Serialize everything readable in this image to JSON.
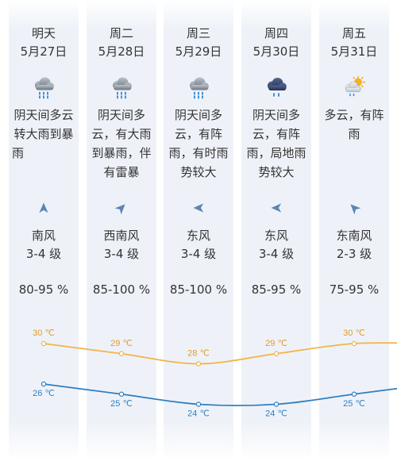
{
  "days": [
    {
      "day": "明天",
      "date": "5月27日",
      "icon": "heavy-rain-icon",
      "desc": "阴天间多云转大雨到暴雨",
      "arrow_icon": "arrow-north-icon",
      "wind": "南风",
      "level": "3-4 级",
      "humidity": "80-95 %"
    },
    {
      "day": "周二",
      "date": "5月28日",
      "icon": "heavy-rain-icon",
      "desc": "阴天间多云，有大雨到暴雨，伴有雷暴",
      "arrow_icon": "arrow-northeast-icon",
      "wind": "西南风",
      "level": "3-4 级",
      "humidity": "85-100 %"
    },
    {
      "day": "周三",
      "date": "5月29日",
      "icon": "heavy-rain-icon",
      "desc": "阴天间多云，有阵雨，有时雨势较大",
      "arrow_icon": "arrow-west-icon",
      "wind": "东风",
      "level": "3-4 级",
      "humidity": "85-100 %"
    },
    {
      "day": "周四",
      "date": "5月30日",
      "icon": "dark-cloud-shower-icon",
      "desc": "阴天间多云，有阵雨，局地雨势较大",
      "arrow_icon": "arrow-west-icon",
      "wind": "东风",
      "level": "3-4 级",
      "humidity": "85-95 %"
    },
    {
      "day": "周五",
      "date": "5月31日",
      "icon": "sun-cloud-shower-icon",
      "desc": "多云，有阵雨",
      "arrow_icon": "arrow-northwest-icon",
      "wind": "东南风",
      "level": "2-3 级",
      "humidity": "75-95 %"
    }
  ],
  "colors": {
    "strip": "#eef2f8",
    "text": "#333333",
    "wind_arrow": "#5b86b6"
  },
  "chart_data": {
    "type": "line",
    "grid": false,
    "series": [
      {
        "values": [
          30,
          29,
          28,
          29,
          30
        ],
        "labels": [
          "30 ℃",
          "29 ℃",
          "28 ℃",
          "29 ℃",
          "30 ℃"
        ],
        "color": "#f2b448",
        "label_color": "#e39a2a"
      },
      {
        "values": [
          26,
          25,
          24,
          24,
          25
        ],
        "labels": [
          "26 ℃",
          "25 ℃",
          "24 ℃",
          "24 ℃",
          "25 ℃"
        ],
        "color": "#2f7fc1",
        "label_color": "#2f7fc1"
      }
    ]
  }
}
